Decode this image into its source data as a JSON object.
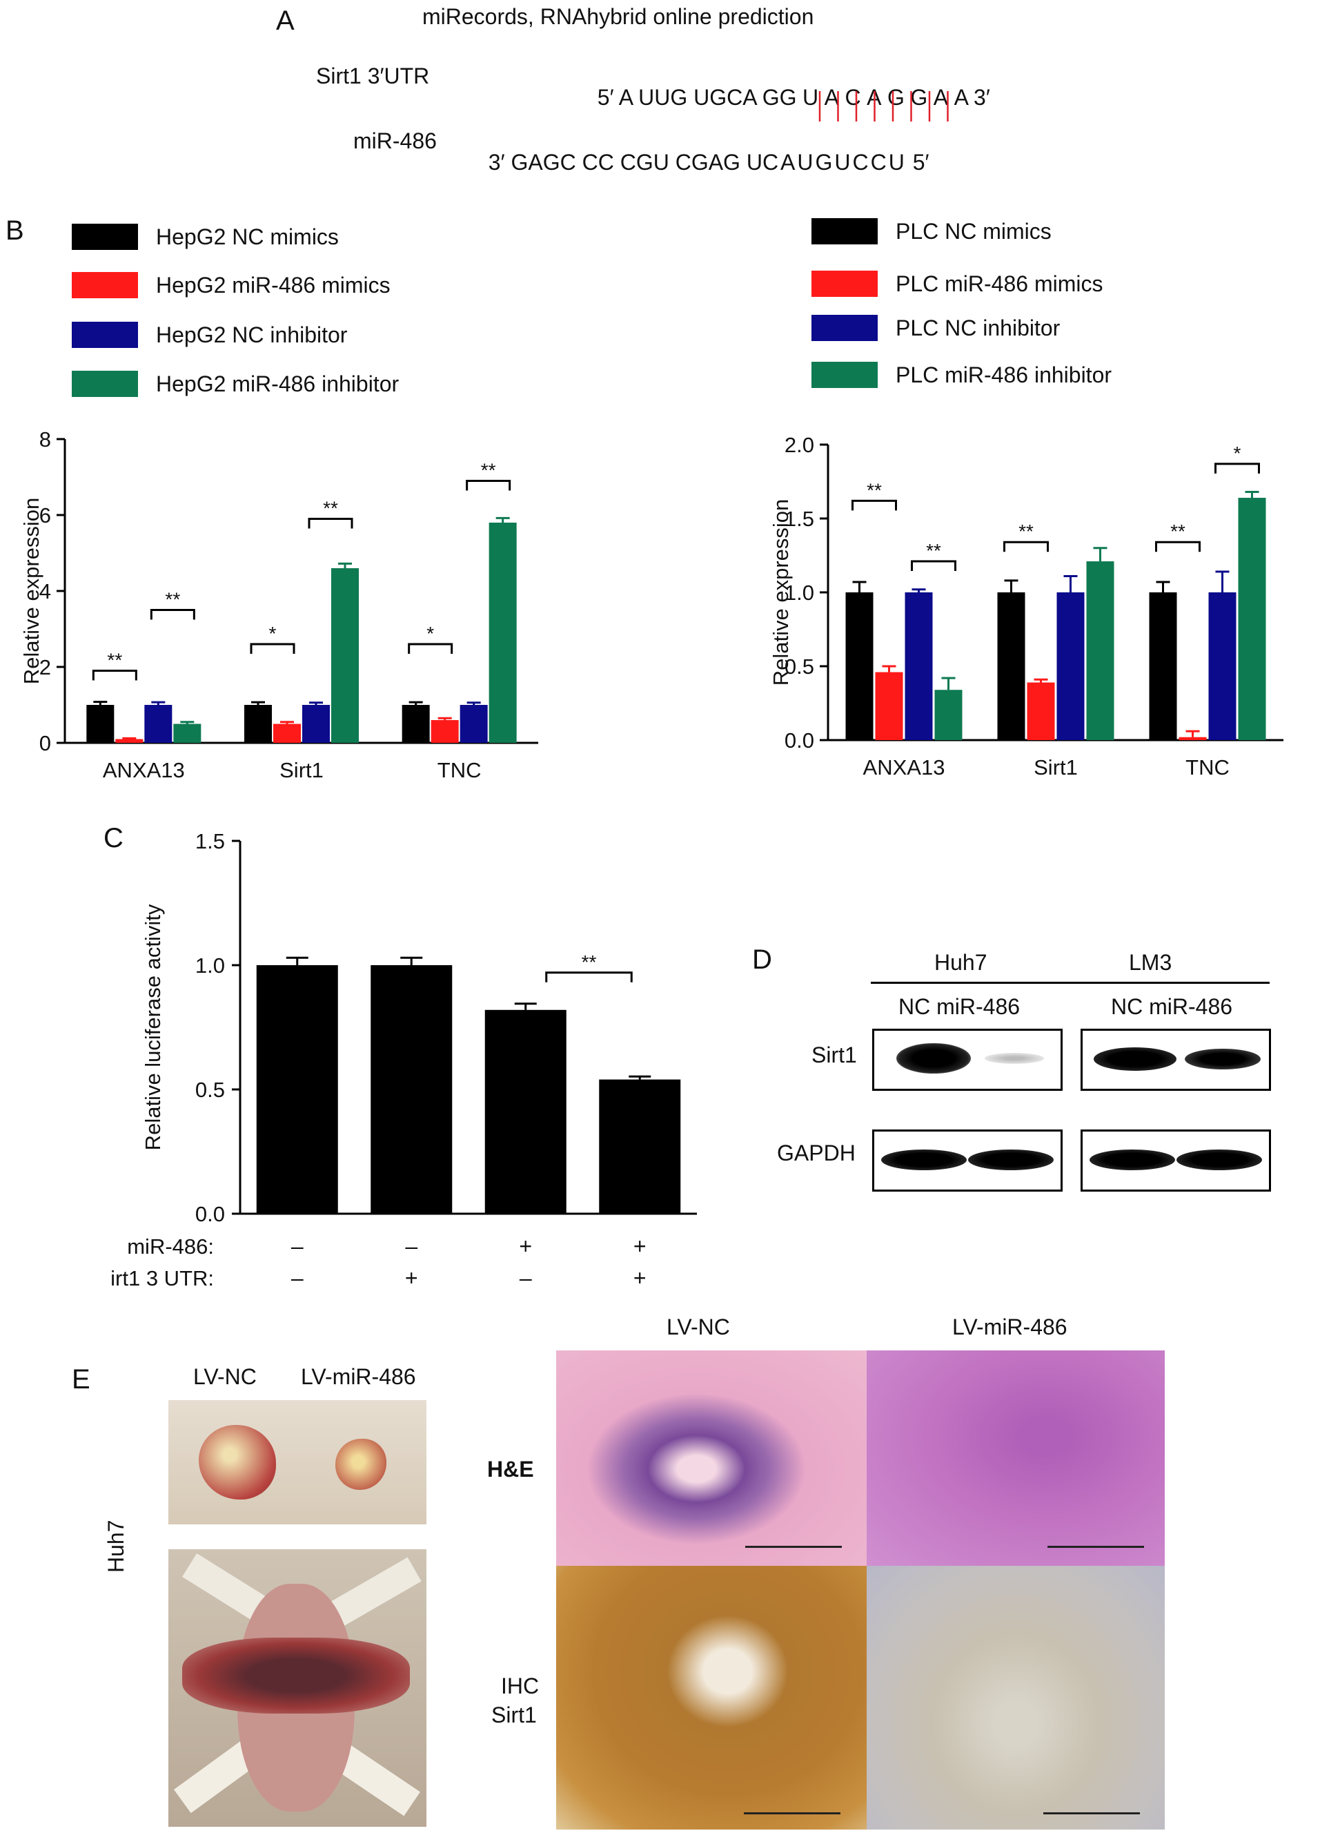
{
  "panel_labels": {
    "a": "A",
    "b": "B",
    "c": "C",
    "d": "D",
    "e": "E"
  },
  "panel_a": {
    "title": "miRecords, RNAhybrid online prediction",
    "row1_label": "Sirt1 3′UTR",
    "row1_seq_prefix": "5′ A UUG UGCA G",
    "row1_seq_bind": "GUACAGGA",
    "row1_seq_suffix": "A 3′",
    "row2_label": "miR-486",
    "row2_seq_prefix": "3′ GAGC CC CGU CGAG U",
    "row2_seq_bind": "CAUGUCCU",
    "row2_seq_suffix": " 5′",
    "line_color": "#e0202a"
  },
  "colors": {
    "black": "#000000",
    "red": "#ff1a1a",
    "blue": "#0b0b8c",
    "green": "#0e7a52"
  },
  "legend_left": [
    "HepG2 NC mimics",
    "HepG2 miR-486 mimics",
    "HepG2 NC inhibitor",
    "HepG2 miR-486 inhibitor"
  ],
  "legend_right": [
    "PLC NC mimics",
    "PLC miR-486 mimics",
    "PLC NC inhibitor",
    "PLC miR-486 inhibitor"
  ],
  "chart_data": [
    {
      "type": "bar",
      "ylabel": "Relative expression",
      "ylim": [
        0,
        8
      ],
      "yticks": [
        "0",
        "2",
        "4",
        "6",
        "8"
      ],
      "categories": [
        "ANXA13",
        "Sirt1",
        "TNC"
      ],
      "series": [
        {
          "name": "HepG2 NC mimics",
          "values": [
            1.0,
            1.0,
            1.0
          ],
          "err": [
            0.08,
            0.07,
            0.07
          ]
        },
        {
          "name": "HepG2 miR-486 mimics",
          "values": [
            0.1,
            0.5,
            0.6
          ],
          "err": [
            0.02,
            0.05,
            0.05
          ]
        },
        {
          "name": "HepG2 NC inhibitor",
          "values": [
            1.0,
            1.0,
            1.0
          ],
          "err": [
            0.07,
            0.06,
            0.06
          ]
        },
        {
          "name": "HepG2 miR-486 inhibitor",
          "values": [
            0.5,
            4.6,
            5.8
          ],
          "err": [
            0.05,
            0.12,
            0.12
          ]
        }
      ],
      "significance": [
        {
          "category": 0,
          "pair": [
            0,
            1
          ],
          "level": 1.9,
          "label": "**"
        },
        {
          "category": 0,
          "pair": [
            2,
            3
          ],
          "level": 3.5,
          "label": "**"
        },
        {
          "category": 1,
          "pair": [
            0,
            1
          ],
          "level": 2.6,
          "label": "*"
        },
        {
          "category": 1,
          "pair": [
            2,
            3
          ],
          "level": 5.9,
          "label": "**"
        },
        {
          "category": 2,
          "pair": [
            0,
            1
          ],
          "level": 2.6,
          "label": "*"
        },
        {
          "category": 2,
          "pair": [
            2,
            3
          ],
          "level": 6.9,
          "label": "**"
        }
      ]
    },
    {
      "type": "bar",
      "ylabel": "Relative expression",
      "ylim": [
        0,
        2.0
      ],
      "yticks": [
        "0.0",
        "0.5",
        "1.0",
        "1.5",
        "2.0"
      ],
      "categories": [
        "ANXA13",
        "Sirt1",
        "TNC"
      ],
      "series": [
        {
          "name": "PLC NC mimics",
          "values": [
            1.0,
            1.0,
            1.0
          ],
          "err": [
            0.07,
            0.08,
            0.07
          ]
        },
        {
          "name": "PLC miR-486 mimics",
          "values": [
            0.46,
            0.39,
            0.02
          ],
          "err": [
            0.04,
            0.02,
            0.04
          ]
        },
        {
          "name": "PLC NC inhibitor",
          "values": [
            1.0,
            1.0,
            1.0
          ],
          "err": [
            0.02,
            0.11,
            0.14
          ]
        },
        {
          "name": "PLC miR-486 inhibitor",
          "values": [
            0.34,
            1.21,
            1.64
          ],
          "err": [
            0.08,
            0.09,
            0.04
          ]
        }
      ],
      "significance": [
        {
          "category": 0,
          "pair": [
            0,
            1
          ],
          "level": 1.62,
          "label": "**"
        },
        {
          "category": 0,
          "pair": [
            2,
            3
          ],
          "level": 1.21,
          "label": "**"
        },
        {
          "category": 1,
          "pair": [
            0,
            1
          ],
          "level": 1.34,
          "label": "**"
        },
        {
          "category": 2,
          "pair": [
            0,
            1
          ],
          "level": 1.34,
          "label": "**"
        },
        {
          "category": 2,
          "pair": [
            2,
            3
          ],
          "level": 1.87,
          "label": "*"
        }
      ]
    },
    {
      "type": "bar",
      "ylabel": "Relative luciferase activity",
      "ylim": [
        0,
        1.5
      ],
      "yticks": [
        "0.0",
        "0.5",
        "1.0",
        "1.5"
      ],
      "values": [
        1.0,
        1.0,
        0.82,
        0.54
      ],
      "err": [
        0.03,
        0.03,
        0.025,
        0.012
      ],
      "row_labels": [
        "miR-486:",
        "Sirt1 3 UTR:"
      ],
      "row1": [
        "–",
        "–",
        "+",
        "+"
      ],
      "row2": [
        "–",
        "+",
        "–",
        "+"
      ],
      "significance": [
        {
          "pair": [
            2,
            3
          ],
          "level": 0.97,
          "label": "**"
        }
      ]
    }
  ],
  "panel_d": {
    "group1": "Huh7",
    "group2": "LM3",
    "lane_labels1": "NC miR-486",
    "lane_labels2": "NC miR-486",
    "row1": "Sirt1",
    "row2": "GAPDH"
  },
  "panel_e": {
    "col_lv_nc": "LV-NC",
    "col_lv_mir": "LV-miR-486",
    "side_label": "Huh7",
    "hist_col1": "LV-NC",
    "hist_col2": "LV-miR-486",
    "row_he": "H&E",
    "row_ihc1": "IHC",
    "row_ihc2": "Sirt1"
  }
}
